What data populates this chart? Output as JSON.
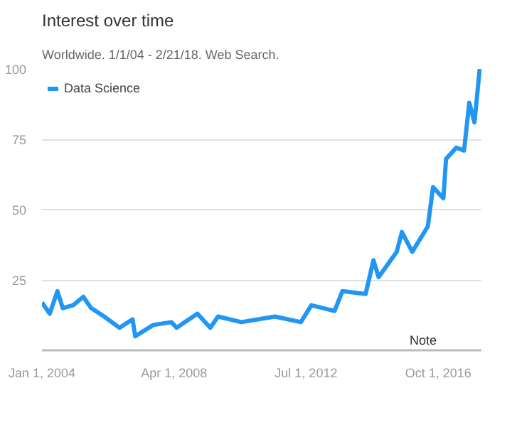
{
  "chart_data": {
    "type": "line",
    "title": "Interest over time",
    "subtitle": "Worldwide. 1/1/04 - 2/21/18. Web Search.",
    "x": [
      "2004-01",
      "2004-04",
      "2004-07",
      "2004-09",
      "2005-01",
      "2005-05",
      "2005-08",
      "2006-01",
      "2006-07",
      "2006-12",
      "2007-01",
      "2007-08",
      "2008-03",
      "2008-05",
      "2009-01",
      "2009-06",
      "2009-09",
      "2010-06",
      "2011-07",
      "2012-05",
      "2012-09",
      "2013-06",
      "2013-09",
      "2014-06",
      "2014-09",
      "2014-11",
      "2015-06",
      "2015-08",
      "2015-12",
      "2016-06",
      "2016-08",
      "2016-12",
      "2017-01",
      "2017-05",
      "2017-08",
      "2017-10",
      "2017-12",
      "2018-02"
    ],
    "series": [
      {
        "name": "Data Science",
        "color": "#2196f3",
        "values": [
          17,
          13,
          21,
          15,
          16,
          19,
          15,
          12,
          8,
          11,
          5,
          9,
          10,
          8,
          13,
          8,
          12,
          10,
          12,
          10,
          16,
          14,
          21,
          20,
          32,
          26,
          35,
          42,
          35,
          44,
          58,
          54,
          68,
          72,
          71,
          88,
          81,
          100
        ]
      }
    ],
    "xlim": [
      "2004-01-01",
      "2018-02-21"
    ],
    "xticks": [
      {
        "value": "2004-01-01",
        "label": "Jan 1, 2004"
      },
      {
        "value": "2008-04-01",
        "label": "Apr 1, 2008"
      },
      {
        "value": "2012-07-01",
        "label": "Jul 1, 2012"
      },
      {
        "value": "2016-10-01",
        "label": "Oct 1, 2016"
      }
    ],
    "ylim": [
      0,
      100
    ],
    "yticks": [
      25,
      50,
      75,
      100
    ],
    "grid": "y",
    "legend": "top left",
    "marker": "none",
    "line_style": "solid",
    "annotations": [
      "Note"
    ]
  }
}
